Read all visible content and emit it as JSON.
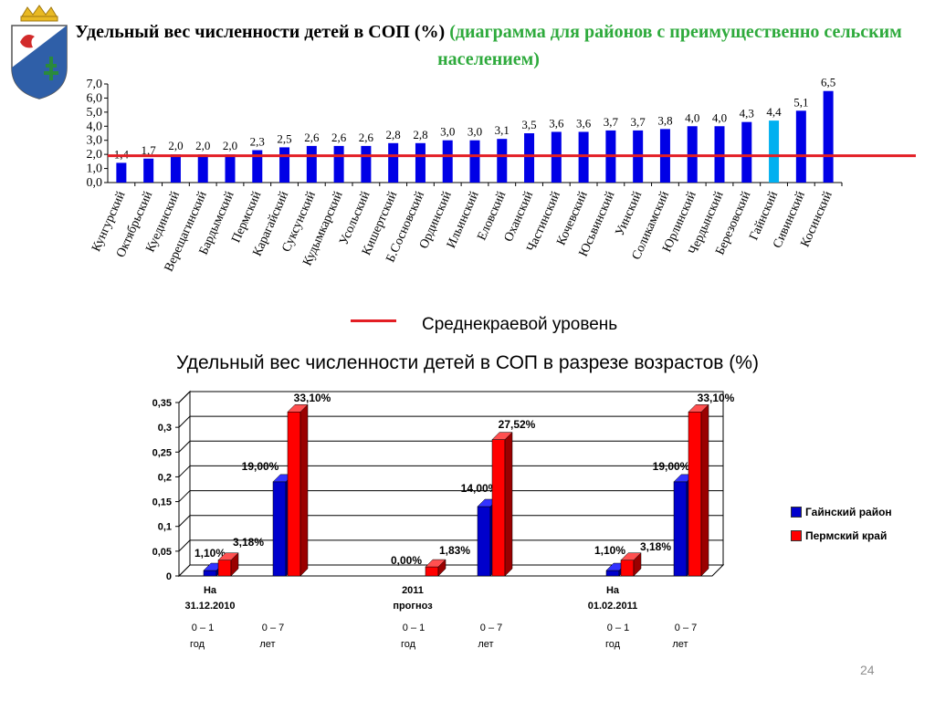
{
  "title_top": {
    "main": "Удельный вес численности детей в СОП (%)",
    "green": "(диаграмма для районов с преимущественно сельским населением)"
  },
  "legend_top": {
    "label": "Среднекраевой уровень"
  },
  "title_bottom": "Удельный вес численности детей в СОП в разрезе возрастов (%)",
  "page_number": "24",
  "colors": {
    "bar_blue": "#0000e6",
    "bar_highlight": "#00b0f0",
    "avg_line": "#e31e24",
    "green_title": "#2eaa3c",
    "series_gainsky": "#0000cc",
    "series_perm": "#ff0000"
  },
  "chart_data": [
    {
      "type": "bar",
      "title": "Удельный вес численности детей в СОП (%)",
      "categories": [
        "Кунгурский",
        "Октябрьский",
        "Куединский",
        "Верещагинский",
        "Бардымский",
        "Пермский",
        "Карагайский",
        "Суксунский",
        "Кудымкарский",
        "Усольский",
        "Кишертский",
        "Б.Сосновский",
        "Ординский",
        "Ильинский",
        "Еловский",
        "Оханский",
        "Частинский",
        "Кочевский",
        "Юсьвинский",
        "Уинский",
        "Соликамский",
        "Юрлинский",
        "Чердынский",
        "Березовский",
        "Гайнский",
        "Сивинский",
        "Косинский"
      ],
      "value_labels": [
        "1,4",
        "1,7",
        "2,0",
        "2,0",
        "2,0",
        "2,3",
        "2,5",
        "2,6",
        "2,6",
        "2,6",
        "2,8",
        "2,8",
        "3,0",
        "3,0",
        "3,1",
        "3,5",
        "3,6",
        "3,6",
        "3,7",
        "3,7",
        "3,8",
        "4,0",
        "4,0",
        "4,3",
        "4,4",
        "5,1",
        "6,5"
      ],
      "values": [
        1.4,
        1.7,
        2.0,
        2.0,
        2.0,
        2.3,
        2.5,
        2.6,
        2.6,
        2.6,
        2.8,
        2.8,
        3.0,
        3.0,
        3.1,
        3.5,
        3.6,
        3.6,
        3.7,
        3.7,
        3.8,
        4.0,
        4.0,
        4.3,
        4.4,
        5.1,
        6.5
      ],
      "highlight_category": "Гайнский",
      "reference_line": {
        "name": "Среднекраевой уровень",
        "value": 1.9
      },
      "y_ticks": [
        "0,0",
        "1,0",
        "2,0",
        "3,0",
        "4,0",
        "5,0",
        "6,0",
        "7,0"
      ],
      "ylim": [
        0,
        7
      ],
      "grid": false
    },
    {
      "type": "bar",
      "title": "Удельный вес численности детей в СОП в разрезе возрастов (%)",
      "groups": [
        {
          "label_line1": "На",
          "label_line2": "31.12.2010"
        },
        {
          "label_line1": "2011",
          "label_line2": "прогноз"
        },
        {
          "label_line1": "На",
          "label_line2": "01.02.2011"
        }
      ],
      "age_labels": [
        [
          "0 – 1",
          "год"
        ],
        [
          "0 – 7",
          "лет"
        ],
        [
          "0 – 1",
          "год"
        ],
        [
          "0 – 7",
          "лет"
        ],
        [
          "0 – 1",
          "год"
        ],
        [
          "0 – 7",
          "лет"
        ]
      ],
      "series": [
        {
          "name": "Гайнский район",
          "values": [
            0.011,
            0.19,
            0.0,
            0.14,
            0.011,
            0.19
          ],
          "labels": [
            "1,10%",
            "19,00%",
            "0,00%",
            "14,00%",
            "1,10%",
            "19,00%"
          ]
        },
        {
          "name": "Пермский край",
          "values": [
            0.0318,
            0.331,
            0.0183,
            0.2752,
            0.0318,
            0.331
          ],
          "labels": [
            "3,18%",
            "33,10%",
            "1,83%",
            "27,52%",
            "3,18%",
            "33,10%"
          ]
        }
      ],
      "y_ticks": [
        "0",
        "0,05",
        "0,1",
        "0,15",
        "0,2",
        "0,25",
        "0,3",
        "0,35"
      ],
      "ylim": [
        0,
        0.35
      ],
      "grid": true,
      "legend_position": "right"
    }
  ]
}
